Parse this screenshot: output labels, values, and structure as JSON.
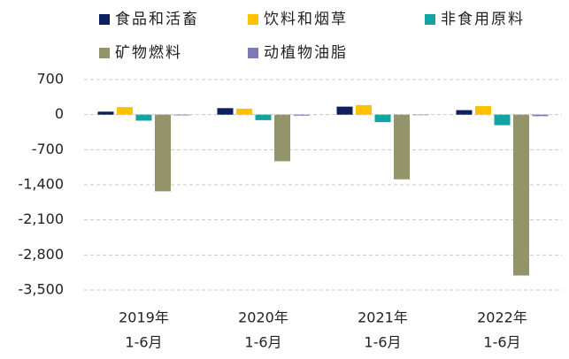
{
  "chart_data": {
    "type": "bar",
    "categories": [
      [
        "2019年",
        "1-6月"
      ],
      [
        "2020年",
        "1-6月"
      ],
      [
        "2021年",
        "1-6月"
      ],
      [
        "2022年",
        "1-6月"
      ]
    ],
    "series": [
      {
        "name": "食品和活畜",
        "color": "#0d1f5c",
        "values": [
          60,
          130,
          160,
          90
        ]
      },
      {
        "name": "饮料和烟草",
        "color": "#ffc000",
        "values": [
          150,
          120,
          190,
          170
        ]
      },
      {
        "name": "非食用原料",
        "color": "#14a3a3",
        "values": [
          -120,
          -110,
          -150,
          -210
        ]
      },
      {
        "name": "矿物燃料",
        "color": "#939469",
        "values": [
          -1530,
          -930,
          -1290,
          -3210
        ]
      },
      {
        "name": "动植物油脂",
        "color": "#7b79b8",
        "values": [
          -15,
          -20,
          -10,
          -30
        ]
      }
    ],
    "ylim": [
      -3500,
      700
    ],
    "yticks": [
      700,
      0,
      -700,
      {
        "value": -1400,
        "label": "-1,400"
      },
      {
        "value": -2100,
        "label": "-2,100"
      },
      {
        "value": -2800,
        "label": "-2,800"
      },
      {
        "value": -3500,
        "label": "-3,500"
      }
    ],
    "grid": true
  }
}
